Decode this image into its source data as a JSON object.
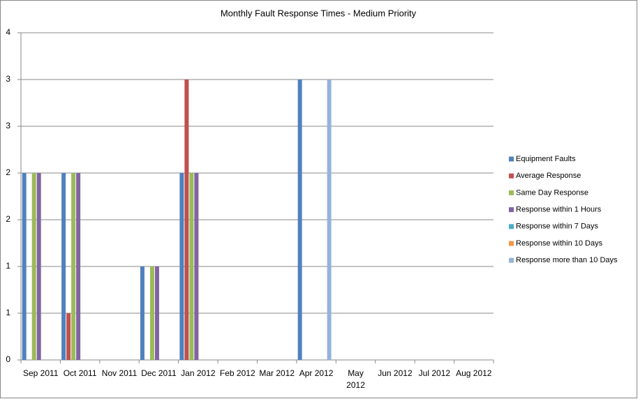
{
  "chart_data": {
    "type": "bar",
    "title": "Monthly Fault Response Times - Medium Priority",
    "categories": [
      "Sep 2011",
      "Oct 2011",
      "Nov 2011",
      "Dec 2011",
      "Jan 2012",
      "Feb 2012",
      "Mar 2012",
      "Apr 2012",
      "May 2012",
      "Jun 2012",
      "Jul 2012",
      "Aug 2012"
    ],
    "series": [
      {
        "name": "Equipment Faults",
        "color": "#4f81bd",
        "values": [
          2,
          2,
          0,
          1,
          2,
          0,
          0,
          3,
          0,
          0,
          0,
          0
        ]
      },
      {
        "name": "Average Response",
        "color": "#c0504d",
        "values": [
          0,
          0.5,
          0,
          0,
          3,
          0,
          0,
          0,
          0,
          0,
          0,
          0
        ]
      },
      {
        "name": "Same Day Response",
        "color": "#9bbb59",
        "values": [
          2,
          2,
          0,
          1,
          2,
          0,
          0,
          0,
          0,
          0,
          0,
          0
        ]
      },
      {
        "name": "Response within 1 Hours",
        "color": "#8064a2",
        "values": [
          2,
          2,
          0,
          1,
          2,
          0,
          0,
          0,
          0,
          0,
          0,
          0
        ]
      },
      {
        "name": "Response within 7 Days",
        "color": "#4bacc6",
        "values": [
          0,
          0,
          0,
          0,
          0,
          0,
          0,
          0,
          0,
          0,
          0,
          0
        ]
      },
      {
        "name": "Response within 10 Days",
        "color": "#f79646",
        "values": [
          0,
          0,
          0,
          0,
          0,
          0,
          0,
          0,
          0,
          0,
          0,
          0
        ]
      },
      {
        "name": "Response more than 10 Days",
        "color": "#95b3d7",
        "values": [
          0,
          0,
          0,
          0,
          0,
          0,
          0,
          3,
          0,
          0,
          0,
          0
        ]
      }
    ],
    "ylim": [
      0,
      3.5
    ],
    "yticks": [
      0,
      {
        "value": 0.5,
        "label": "1"
      },
      1,
      {
        "value": 1.5,
        "label": "2"
      },
      2,
      {
        "value": 2.5,
        "label": "3"
      },
      3,
      {
        "value": 3.5,
        "label": "4"
      }
    ],
    "grid": true,
    "legend": "right"
  }
}
